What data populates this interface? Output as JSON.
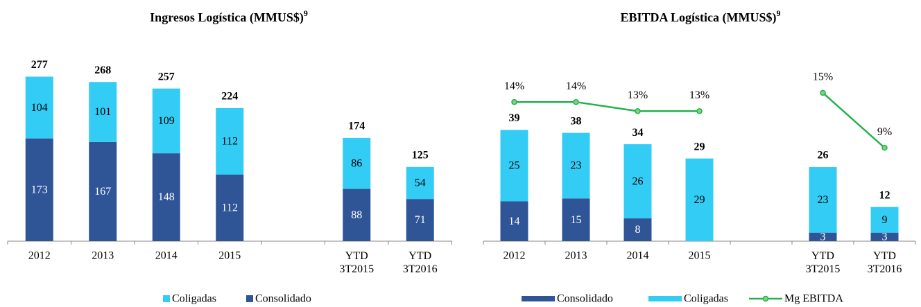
{
  "chart_data": [
    {
      "type": "bar",
      "title": "Ingresos Logística (MMUS$)",
      "footnote_mark": "9",
      "categories": [
        "2012",
        "2013",
        "2014",
        "2015",
        null,
        "YTD 3T2015",
        "YTD 3T2016"
      ],
      "series": [
        {
          "name": "Consolidado",
          "color": "#2f5597",
          "values": [
            173,
            167,
            148,
            112,
            null,
            88,
            71
          ]
        },
        {
          "name": "Coligadas",
          "color": "#33ccf5",
          "values": [
            104,
            101,
            109,
            112,
            null,
            86,
            54
          ]
        }
      ],
      "totals": [
        277,
        268,
        257,
        224,
        null,
        174,
        125
      ],
      "legend_order": [
        1,
        0
      ],
      "ylim": [
        0,
        336
      ]
    },
    {
      "type": "bar",
      "title": "EBITDA Logística (MMUS$)",
      "footnote_mark": "9",
      "categories": [
        "2012",
        "2013",
        "2014",
        "2015",
        null,
        "YTD 3T2015",
        "YTD 3T2016"
      ],
      "series": [
        {
          "name": "Consolidado",
          "color": "#2f5597",
          "values": [
            14,
            15,
            8,
            null,
            null,
            3,
            3
          ]
        },
        {
          "name": "Coligadas",
          "color": "#33ccf5",
          "values": [
            25,
            23,
            26,
            29,
            null,
            23,
            9
          ]
        },
        {
          "name": "Mg EBITDA",
          "color": "#22b14c",
          "type": "line",
          "axis": "y2",
          "values": [
            14,
            14,
            13,
            13,
            null,
            15,
            9
          ],
          "value_labels": [
            "14%",
            "14%",
            "13%",
            "13%",
            null,
            "15%",
            "9%"
          ]
        }
      ],
      "totals": [
        39,
        38,
        34,
        29,
        null,
        26,
        12
      ],
      "legend_order": [
        0,
        1,
        2
      ],
      "ylim": [
        0,
        70
      ],
      "y2lim": [
        -1.2,
        20.6
      ]
    }
  ]
}
